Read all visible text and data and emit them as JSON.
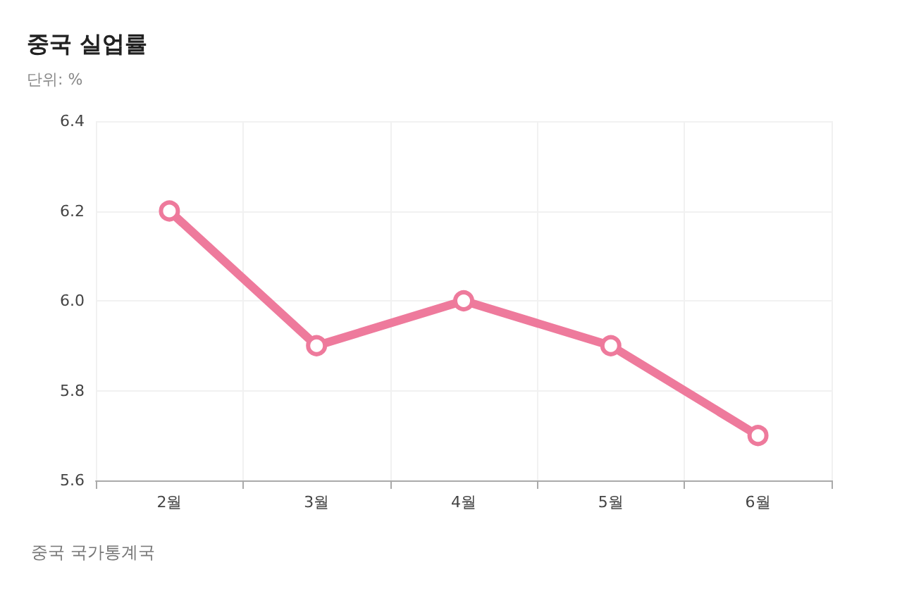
{
  "chart_data": {
    "type": "line",
    "title": "중국 실업률",
    "subtitle": "단위: %",
    "annotations": [
      "중국 국가통계국"
    ],
    "categories": [
      "2월",
      "3월",
      "4월",
      "5월",
      "6월"
    ],
    "series": [
      {
        "color": "#ee7a9c",
        "values": [
          6.2,
          5.9,
          6.0,
          5.9,
          5.7
        ]
      }
    ],
    "ylim": [
      5.6,
      6.4
    ],
    "yticks": [
      5.6,
      5.8,
      {
        "value": 6,
        "label": "6.0"
      },
      6.2,
      6.4
    ],
    "grid": true,
    "marker": "circle",
    "line_style": "solid"
  }
}
